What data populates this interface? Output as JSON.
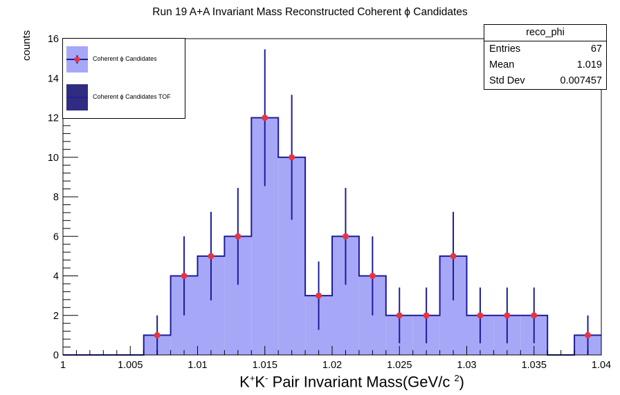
{
  "chart_data": {
    "type": "bar",
    "title": "Run 19 A+A Invariant Mass Reconstructed Coherent ϕ Candidates",
    "xlabel_parts": [
      "K",
      "+",
      "K",
      "-",
      " Pair Invariant Mass(GeV/c ",
      "2",
      ")"
    ],
    "ylabel": "counts",
    "xlim": [
      1.0,
      1.04
    ],
    "ylim": [
      0,
      16
    ],
    "bin_width": 0.002,
    "x_tick_labels": [
      "1",
      "1.005",
      "1.01",
      "1.015",
      "1.02",
      "1.025",
      "1.03",
      "1.035",
      "1.04"
    ],
    "y_tick_labels": [
      "0",
      "2",
      "4",
      "6",
      "8",
      "10",
      "12",
      "14",
      "16"
    ],
    "bin_centers": [
      1.001,
      1.003,
      1.005,
      1.007,
      1.009,
      1.011,
      1.013,
      1.015,
      1.017,
      1.019,
      1.021,
      1.023,
      1.025,
      1.027,
      1.029,
      1.031,
      1.033,
      1.035,
      1.037,
      1.039
    ],
    "series": [
      {
        "name": "Coherent ϕ Candidates",
        "values": [
          0,
          0,
          0,
          1,
          4,
          5,
          6,
          12,
          10,
          3,
          6,
          4,
          2,
          2,
          5,
          2,
          2,
          2,
          0,
          1
        ],
        "errors": [
          0,
          0,
          0,
          1,
          2,
          2.24,
          2.45,
          3.46,
          3.16,
          1.73,
          2.45,
          2,
          1.41,
          1.41,
          2.24,
          1.41,
          1.41,
          1.41,
          0,
          1
        ],
        "fill_color": "#a7a7f7",
        "line_color": "#1b1b9a",
        "marker_color": "#e8343f"
      },
      {
        "name": "Coherent ϕ Candidates TOF",
        "values": [],
        "fill_color": "#302c82"
      }
    ],
    "grid": false,
    "legend_position": "top-left"
  },
  "stats_box": {
    "title": "reco_phi",
    "rows": [
      {
        "label": "Entries",
        "value": "67"
      },
      {
        "label": "Mean",
        "value": "1.019"
      },
      {
        "label": "Std Dev",
        "value": "0.007457"
      }
    ]
  }
}
